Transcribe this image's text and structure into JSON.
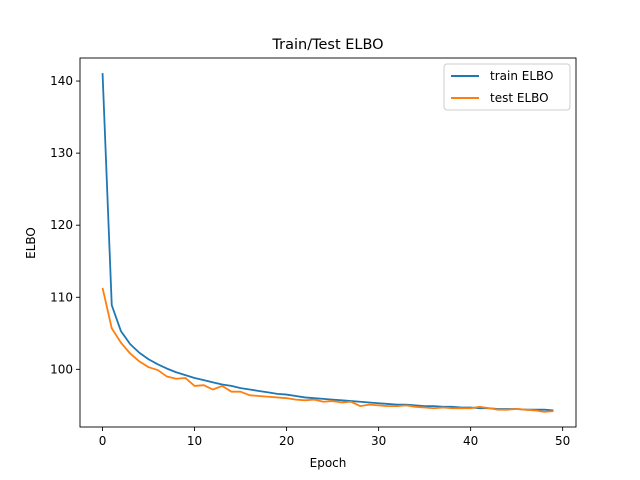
{
  "chart_data": {
    "type": "line",
    "title": "Train/Test ELBO",
    "xlabel": "Epoch",
    "ylabel": "ELBO",
    "xlim": [
      -2.45,
      51.45
    ],
    "ylim": [
      92.0,
      143.2
    ],
    "xticks": [
      0,
      10,
      20,
      30,
      40,
      50
    ],
    "yticks": [
      100,
      110,
      120,
      130,
      140
    ],
    "grid": false,
    "legend_position": "top-right",
    "x": [
      0,
      1,
      2,
      3,
      4,
      5,
      6,
      7,
      8,
      9,
      10,
      11,
      12,
      13,
      14,
      15,
      16,
      17,
      18,
      19,
      20,
      21,
      22,
      23,
      24,
      25,
      26,
      27,
      28,
      29,
      30,
      31,
      32,
      33,
      34,
      35,
      36,
      37,
      38,
      39,
      40,
      41,
      42,
      43,
      44,
      45,
      46,
      47,
      48,
      49
    ],
    "series": [
      {
        "name": "train ELBO",
        "color": "#1f77b4",
        "values": [
          141.1,
          108.9,
          105.3,
          103.5,
          102.3,
          101.4,
          100.7,
          100.1,
          99.6,
          99.2,
          98.8,
          98.5,
          98.2,
          97.9,
          97.7,
          97.4,
          97.2,
          97.0,
          96.8,
          96.6,
          96.5,
          96.3,
          96.1,
          96.0,
          95.9,
          95.8,
          95.7,
          95.6,
          95.5,
          95.4,
          95.3,
          95.2,
          95.1,
          95.1,
          95.0,
          94.9,
          94.9,
          94.8,
          94.8,
          94.7,
          94.7,
          94.6,
          94.6,
          94.5,
          94.5,
          94.5,
          94.4,
          94.4,
          94.4,
          94.3
        ]
      },
      {
        "name": "test ELBO",
        "color": "#ff7f0e",
        "values": [
          111.3,
          105.7,
          103.7,
          102.2,
          101.1,
          100.3,
          99.9,
          99.0,
          98.7,
          98.8,
          97.7,
          97.8,
          97.2,
          97.7,
          96.9,
          96.9,
          96.4,
          96.3,
          96.2,
          96.1,
          96.0,
          95.8,
          95.7,
          95.8,
          95.5,
          95.6,
          95.4,
          95.5,
          94.9,
          95.1,
          95.0,
          94.9,
          94.9,
          95.0,
          94.8,
          94.7,
          94.6,
          94.7,
          94.6,
          94.6,
          94.6,
          94.8,
          94.6,
          94.4,
          94.4,
          94.5,
          94.4,
          94.3,
          94.1,
          94.2
        ]
      }
    ]
  }
}
